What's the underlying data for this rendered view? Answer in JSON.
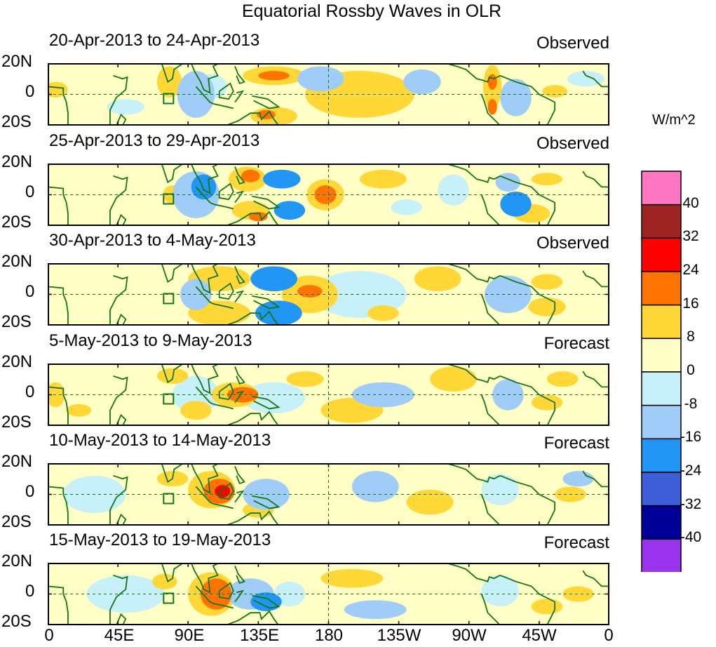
{
  "title": "Equatorial Rossby Waves in OLR",
  "units": "W/m^2",
  "lat_labels": [
    "20N",
    "0",
    "20S"
  ],
  "lon_labels": [
    "0",
    "45E",
    "90E",
    "135E",
    "180",
    "135W",
    "90W",
    "45W",
    "0"
  ],
  "panels": [
    {
      "date_range": "20-Apr-2013 to 24-Apr-2013",
      "type": "Observed"
    },
    {
      "date_range": "25-Apr-2013 to 29-Apr-2013",
      "type": "Observed"
    },
    {
      "date_range": "30-Apr-2013 to 4-May-2013",
      "type": "Observed"
    },
    {
      "date_range": "5-May-2013 to 9-May-2013",
      "type": "Forecast"
    },
    {
      "date_range": "10-May-2013 to 14-May-2013",
      "type": "Forecast"
    },
    {
      "date_range": "15-May-2013 to 19-May-2013",
      "type": "Forecast"
    }
  ],
  "colorbar": {
    "labels": [
      "40",
      "32",
      "24",
      "16",
      "8",
      "0",
      "-8",
      "-16",
      "-24",
      "-32",
      "-40"
    ],
    "colors": [
      "#ff77c3",
      "#9e2424",
      "#ff0000",
      "#ff7400",
      "#ffd736",
      "#ffffc6",
      "#c8f0f8",
      "#a0ccf8",
      "#2196f5",
      "#3d5ed8",
      "#000098",
      "#9933ee"
    ]
  },
  "palette": {
    "pos8": "#ffd736",
    "pos16": "#ff7400",
    "pos24": "#ff0000",
    "pos0": "#ffffc6",
    "neg0": "#c8f0f8",
    "neg8": "#a0ccf8",
    "neg16": "#2196f5",
    "neg24": "#3d5ed8",
    "coast": "#117711"
  }
}
